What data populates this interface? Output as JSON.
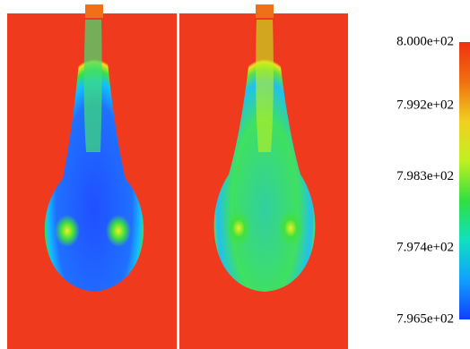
{
  "chart_data": {
    "type": "contour",
    "colorbar": {
      "lim": [
        796.5,
        800
      ],
      "ticks": [
        {
          "value": 800,
          "label": "8.000e+02"
        },
        {
          "value": 799.2,
          "label": "7.992e+02"
        },
        {
          "value": 798.3,
          "label": "7.983e+02"
        },
        {
          "value": 797.4,
          "label": "7.974e+02"
        },
        {
          "value": 796.5,
          "label": "7.965e+02"
        }
      ],
      "colormap": [
        "#1040ff",
        "#10a0ff",
        "#10e0c0",
        "#30e040",
        "#c0f020",
        "#f0d020",
        "#f07010",
        "#f03010"
      ]
    }
  }
}
